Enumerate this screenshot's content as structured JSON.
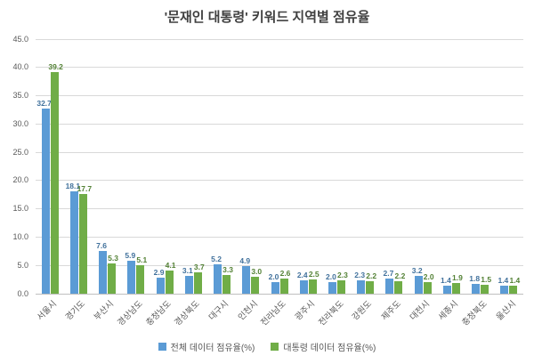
{
  "chart_data": {
    "type": "bar",
    "title": "'문재인 대통령' 키워드 지역별 점유율",
    "categories": [
      "서울시",
      "경기도",
      "부산시",
      "경상남도",
      "충청남도",
      "경상북도",
      "대구시",
      "인천시",
      "전라남도",
      "광주시",
      "전라북도",
      "강원도",
      "제주도",
      "대전시",
      "세종시",
      "충청북도",
      "울산시"
    ],
    "series": [
      {
        "name": "전체 데이터 점유율(%)",
        "color": "#5B9BD5",
        "label_color": "#41719C",
        "values": [
          32.7,
          18.1,
          7.6,
          5.9,
          2.9,
          3.1,
          5.2,
          4.9,
          2.0,
          2.4,
          2.0,
          2.3,
          2.7,
          3.2,
          1.4,
          1.8,
          1.4
        ]
      },
      {
        "name": "대통령 데이터 점유율(%)",
        "color": "#70AD47",
        "label_color": "#538135",
        "values": [
          39.2,
          17.7,
          5.3,
          5.1,
          4.1,
          3.7,
          3.3,
          3.0,
          2.6,
          2.5,
          2.3,
          2.2,
          2.2,
          2.0,
          1.9,
          1.5,
          1.4
        ]
      }
    ],
    "ylim": [
      0,
      45
    ],
    "ytick_step": 5,
    "ytick_decimals": 1,
    "value_label_decimals": 1,
    "grid": true,
    "legend_position": "bottom"
  }
}
